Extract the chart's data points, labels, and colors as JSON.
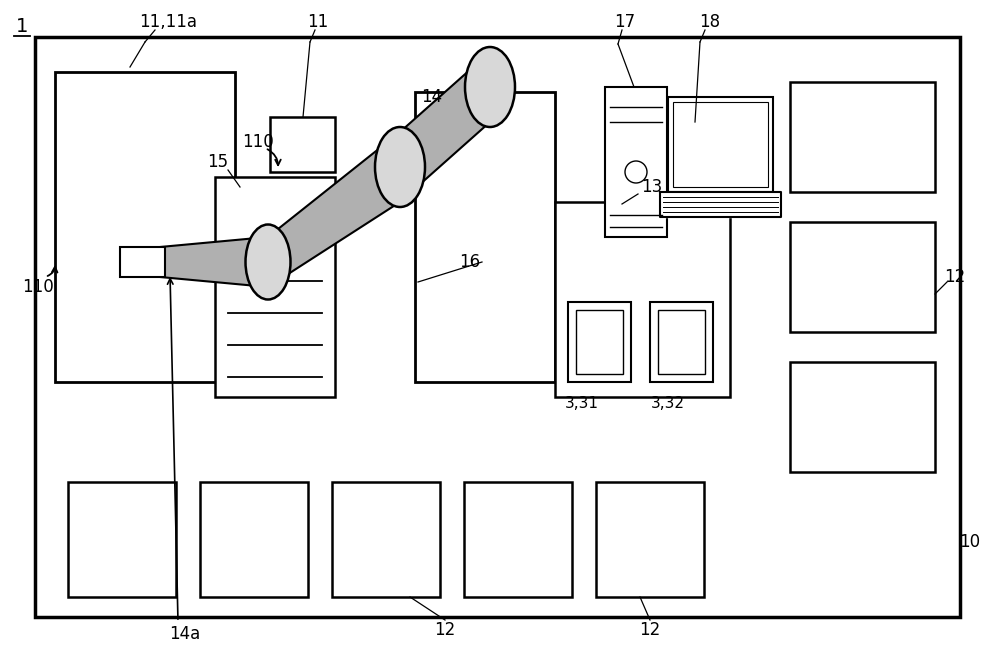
{
  "bg_color": "#ffffff",
  "line_color": "#000000",
  "fig_width": 10.0,
  "fig_height": 6.52,
  "gray_arm": "#b0b0b0",
  "gray_light": "#d8d8d8"
}
